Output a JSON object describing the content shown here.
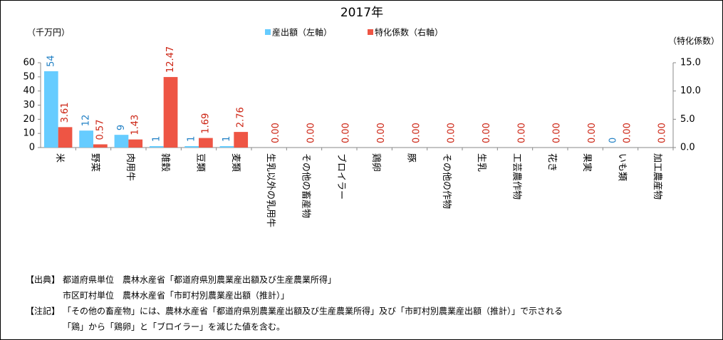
{
  "chart_data": {
    "type": "bar",
    "title": "2017年",
    "y_label": "（千万円）",
    "y2_label": "（特化係数）",
    "categories": [
      "米",
      "野菜",
      "肉用牛",
      "雑穀",
      "豆類",
      "麦類",
      "生乳以外の乳用牛",
      "その他の畜産物",
      "ブロイラー",
      "鶏卵",
      "豚",
      "その他の作物",
      "生乳",
      "工芸農作物",
      "花き",
      "果実",
      "いも類",
      "加工農産物"
    ],
    "series": [
      {
        "name": "産出額（左軸）",
        "color": "#66ccff",
        "label_color": "#1f7fc4",
        "values": [
          54,
          12,
          9,
          1,
          1,
          1,
          null,
          null,
          null,
          null,
          null,
          null,
          null,
          null,
          null,
          null,
          0,
          null
        ]
      },
      {
        "name": "特化係数（右軸）",
        "color": "#ee5544",
        "label_color": "#cc2211",
        "axis": "y2",
        "values": [
          3.61,
          0.57,
          1.43,
          12.47,
          1.69,
          2.76,
          0,
          0,
          0,
          0,
          0,
          0,
          0,
          0,
          0,
          0,
          0,
          0
        ],
        "value_labels": [
          "3.61",
          "0.57",
          "1.43",
          "12.47",
          "1.69",
          "2.76",
          "0.00",
          "0.00",
          "0.00",
          "0.00",
          "0.00",
          "0.00",
          "0.00",
          "0.00",
          "0.00",
          "0.00",
          "0.00",
          "0.00"
        ]
      }
    ],
    "ylim": [
      0,
      60
    ],
    "yticks": [
      0,
      10,
      20,
      30,
      40,
      50,
      60
    ],
    "y2lim": [
      0,
      15
    ],
    "y2ticks": [
      {
        "value": 0,
        "label": "0.0"
      },
      {
        "value": 5,
        "label": "5.0"
      },
      {
        "value": 10,
        "label": "10.0"
      },
      {
        "value": 15,
        "label": "15.0"
      }
    ],
    "notes": [
      {
        "label": "【出典】",
        "lines": [
          "都道府県単位　農林水産省「都道府県別農業産出額及び生産農業所得」",
          "市区町村単位　農林水産省「市町村別農業産出額（推計）」"
        ]
      },
      {
        "label": "【注記】",
        "lines": [
          "「その他の畜産物」には、農林水産省「都道府県別農業産出額及び生産農業所得」及び「市町村別農業産出額（推計）」で示される",
          "「鶏」から「鶏卵」と「ブロイラー」を減じた値を含む。"
        ]
      }
    ]
  }
}
